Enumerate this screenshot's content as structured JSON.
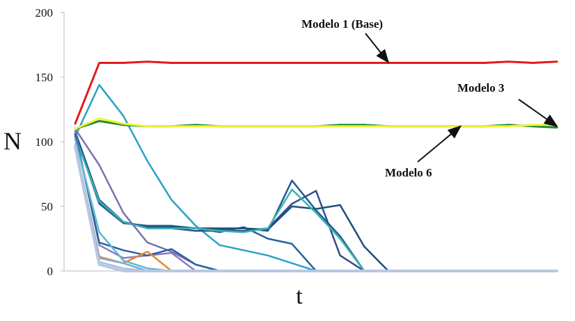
{
  "chart_data": {
    "type": "line",
    "title": "",
    "xlabel": "t",
    "ylabel": "N",
    "ylim": [
      0,
      200
    ],
    "yticks": [
      "0",
      "50",
      "100",
      "150",
      "200"
    ],
    "x": [
      0,
      1,
      2,
      3,
      4,
      5,
      6,
      7,
      8,
      9,
      10,
      11,
      12,
      13,
      14,
      15,
      16,
      17,
      18,
      19,
      20
    ],
    "series": [
      {
        "name": "Modelo 1 (Base)",
        "color": "#e31a1c",
        "width": 3,
        "values": [
          114,
          161,
          161,
          162,
          161,
          161,
          161,
          161,
          161,
          161,
          161,
          161,
          161,
          161,
          161,
          161,
          161,
          161,
          162,
          161,
          162
        ]
      },
      {
        "name": "Modelo 3",
        "color": "#1b8a2e",
        "width": 3,
        "values": [
          110,
          116,
          113,
          112,
          112,
          113,
          112,
          112,
          112,
          112,
          112,
          113,
          113,
          112,
          112,
          112,
          112,
          112,
          113,
          112,
          111
        ]
      },
      {
        "name": "Modelo 6",
        "color": "#f2f23a",
        "width": 3,
        "values": [
          110,
          118,
          114,
          112,
          112,
          112,
          112,
          112,
          112,
          112,
          112,
          112,
          112,
          112,
          112,
          112,
          112,
          112,
          112,
          113,
          113
        ]
      },
      {
        "color": "#2aa0c7",
        "values": [
          104,
          144,
          120,
          85,
          55,
          35,
          20,
          16,
          12,
          6,
          0,
          0,
          0,
          0,
          0,
          0,
          0,
          0,
          0,
          0,
          0
        ]
      },
      {
        "color": "#1f5d99",
        "values": [
          108,
          55,
          38,
          34,
          34,
          33,
          32,
          33,
          31,
          70,
          47,
          27,
          0,
          0,
          0,
          0,
          0,
          0,
          0,
          0,
          0
        ]
      },
      {
        "color": "#2d4f8c",
        "values": [
          106,
          53,
          38,
          33,
          33,
          31,
          31,
          31,
          33,
          52,
          62,
          12,
          0,
          0,
          0,
          0,
          0,
          0,
          0,
          0,
          0
        ]
      },
      {
        "color": "#23619c",
        "values": [
          106,
          52,
          37,
          35,
          35,
          33,
          30,
          34,
          25,
          21,
          0,
          0,
          0,
          0,
          0,
          0,
          0,
          0,
          0,
          0,
          0
        ]
      },
      {
        "color": "#1d4e7a",
        "values": [
          105,
          55,
          38,
          34,
          34,
          33,
          33,
          33,
          32,
          50,
          48,
          51,
          19,
          0,
          0,
          0,
          0,
          0,
          0,
          0,
          0
        ]
      },
      {
        "color": "#3bb3b0",
        "values": [
          104,
          54,
          38,
          33,
          33,
          33,
          31,
          30,
          33,
          63,
          45,
          25,
          0,
          0,
          0,
          0,
          0,
          0,
          0,
          0,
          0
        ]
      },
      {
        "color": "#7a6fb6",
        "values": [
          110,
          82,
          45,
          22,
          15,
          5,
          0,
          0,
          0,
          0,
          0,
          0,
          0,
          0,
          0,
          0,
          0,
          0,
          0,
          0,
          0
        ]
      },
      {
        "color": "#8a7cc0",
        "values": [
          108,
          20,
          10,
          12,
          14,
          0,
          0,
          0,
          0,
          0,
          0,
          0,
          0,
          0,
          0,
          0,
          0,
          0,
          0,
          0,
          0
        ]
      },
      {
        "color": "#2b5fa6",
        "values": [
          106,
          22,
          16,
          12,
          17,
          5,
          0,
          0,
          0,
          0,
          0,
          0,
          0,
          0,
          0,
          0,
          0,
          0,
          0,
          0,
          0
        ]
      },
      {
        "color": "#e6882e",
        "values": [
          98,
          11,
          6,
          15,
          0,
          0,
          0,
          0,
          0,
          0,
          0,
          0,
          0,
          0,
          0,
          0,
          0,
          0,
          0,
          0,
          0
        ]
      },
      {
        "color": "#5db7d1",
        "values": [
          102,
          30,
          8,
          2,
          0,
          0,
          0,
          0,
          0,
          0,
          0,
          0,
          0,
          0,
          0,
          0,
          0,
          0,
          0,
          0,
          0
        ]
      },
      {
        "color": "#7fa8d4",
        "values": [
          98,
          10,
          6,
          0,
          0,
          0,
          0,
          0,
          0,
          0,
          0,
          0,
          0,
          0,
          0,
          0,
          0,
          0,
          0,
          0,
          0
        ]
      },
      {
        "color": "#a7bddc",
        "values": [
          98,
          7,
          2,
          0,
          0,
          0,
          0,
          0,
          0,
          0,
          0,
          0,
          0,
          0,
          0,
          0,
          0,
          0,
          0,
          0,
          0
        ]
      },
      {
        "color": "#b7c8e2",
        "width": 4,
        "values": [
          96,
          5,
          0,
          0,
          0,
          0,
          0,
          0,
          0,
          0,
          0,
          0,
          0,
          0,
          0,
          0,
          0,
          0,
          0,
          0,
          0
        ]
      }
    ],
    "annotations": [
      {
        "text": "Modelo 1 (Base)",
        "target_x": 13,
        "target_y": 161
      },
      {
        "text": "Modelo 3",
        "target_x": 20,
        "target_y": 112
      },
      {
        "text": "Modelo 6",
        "target_x": 16,
        "target_y": 112
      }
    ],
    "grid": false,
    "legend": "none"
  }
}
